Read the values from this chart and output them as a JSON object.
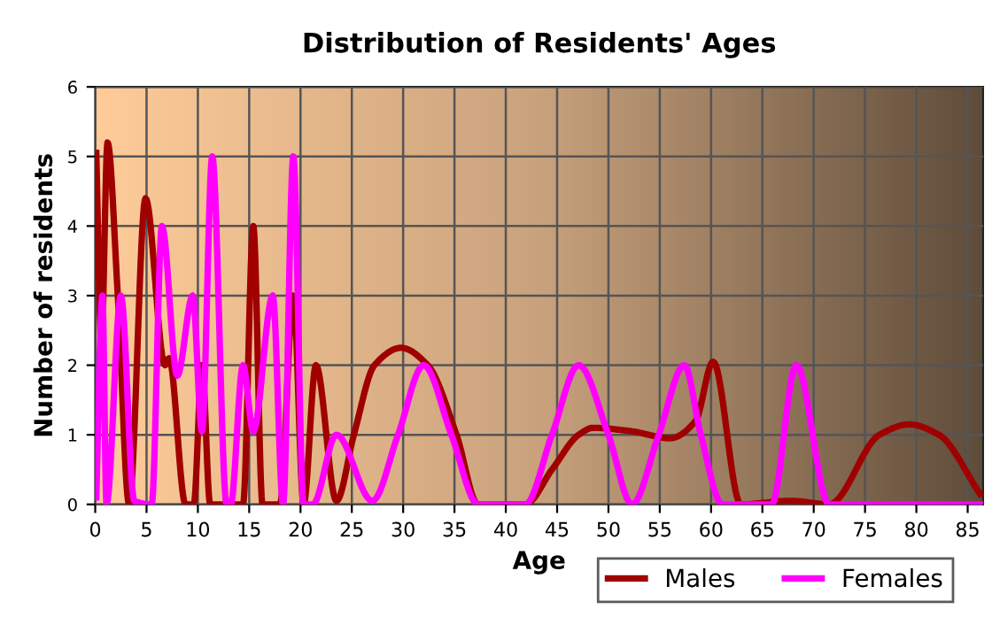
{
  "chart_data": {
    "type": "line",
    "title": "Distribution of Residents' Ages",
    "xlabel": "Age",
    "ylabel": "Number of residents",
    "xlim": [
      0,
      86.5
    ],
    "xticks": [
      0,
      5,
      10,
      15,
      20,
      25,
      30,
      35,
      40,
      45,
      50,
      55,
      60,
      65,
      70,
      75,
      80,
      85
    ],
    "ylim": [
      0,
      6
    ],
    "yticks": [
      0,
      1,
      2,
      3,
      4,
      5,
      6
    ],
    "grid": true,
    "legend": "bottom right",
    "marker": "none",
    "line_style": "solid",
    "series": [
      {
        "name": "Males",
        "color": "#a00000",
        "x": [
          0.1,
          0.6,
          1.2,
          2.2,
          3.3,
          4.9,
          6.8,
          7.2,
          8.8,
          9.6,
          10.4,
          11.2,
          14.4,
          15.4,
          16.3,
          18,
          19.3,
          20.3,
          21.5,
          23.5,
          25.2,
          27.2,
          29.8,
          32.4,
          35.2,
          37.3,
          41.9,
          44.5,
          47.1,
          48.5,
          52.3,
          56,
          58.5,
          60.2,
          62.9,
          67.8,
          71.5,
          76.4,
          79.3,
          82.2,
          86.2
        ],
        "values": [
          5.05,
          2.3,
          5.2,
          3,
          0,
          4.4,
          2,
          2.1,
          0,
          0,
          2,
          0,
          0,
          4,
          0,
          0,
          3,
          0,
          2,
          0.05,
          1,
          2,
          2.25,
          2,
          1,
          0,
          0,
          0.5,
          1,
          1.1,
          1.05,
          0.95,
          1.2,
          2.05,
          0,
          0.05,
          0,
          1,
          1.15,
          1,
          0.15
        ]
      },
      {
        "name": "Females",
        "color": "#ff00ff",
        "x": [
          0.1,
          0.7,
          1.1,
          2.5,
          3.8,
          5.5,
          6.5,
          8,
          9.5,
          10.4,
          11.4,
          12.8,
          13.2,
          14.4,
          15.4,
          17.3,
          18.3,
          19.3,
          20.3,
          21.2,
          23.5,
          27,
          29.5,
          32,
          34.7,
          37.3,
          41.9,
          44.5,
          47.1,
          50,
          52.3,
          54.9,
          57.4,
          59,
          61.1,
          65.9,
          68.3,
          71.5,
          86.5
        ],
        "values": [
          0.1,
          3,
          0,
          3,
          0.05,
          0,
          4,
          1.85,
          3,
          1.05,
          5,
          0,
          0,
          2,
          1.05,
          3,
          0,
          5,
          0,
          0,
          1,
          0.05,
          1,
          2,
          1,
          0,
          0,
          1,
          2,
          1,
          0,
          1,
          2,
          1,
          0,
          0,
          2,
          0,
          0
        ]
      }
    ]
  }
}
